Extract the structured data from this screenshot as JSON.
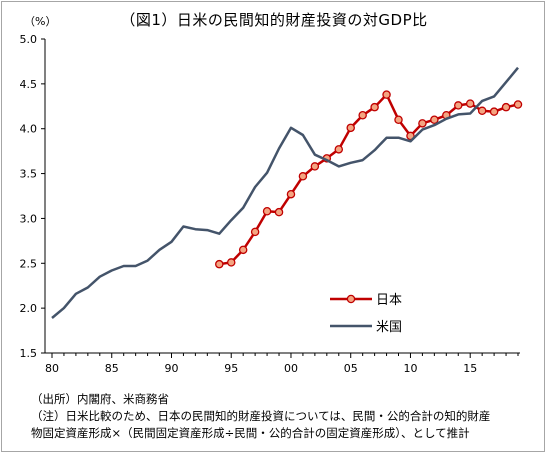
{
  "title": "（図1）日米の民間知的財産投資の対GDP比",
  "unit": "（%）",
  "footnotes": [
    "（出所）内閣府、米商務省",
    "（注）日米比較のため、日本の民間知的財産投資については、民間・公的合計の知的財産",
    "物固定資産形成×（民間固定資産形成÷民間・公的合計の固定資産形成）、として推計"
  ],
  "colors": {
    "japan": "#c00000",
    "japan_marker_fill": "#f4a582",
    "us": "#44546a",
    "axis": "#000000"
  },
  "chart_data": {
    "type": "line",
    "xlim": [
      1980,
      2019
    ],
    "ylim": [
      1.5,
      5.0
    ],
    "xticks": [
      1980,
      1985,
      1990,
      1995,
      2000,
      2005,
      2010,
      2015
    ],
    "xtick_labels": [
      "80",
      "85",
      "90",
      "95",
      "00",
      "05",
      "10",
      "15"
    ],
    "yticks": [
      1.5,
      2.0,
      2.5,
      3.0,
      3.5,
      4.0,
      4.5,
      5.0
    ],
    "ytick_labels": [
      "1.5",
      "2.0",
      "2.5",
      "3.0",
      "3.5",
      "4.0",
      "4.5",
      "5.0"
    ],
    "legend_position": "center-right",
    "series": [
      {
        "name": "日本",
        "marker": "circle",
        "x": [
          1994,
          1995,
          1996,
          1997,
          1998,
          1999,
          2000,
          2001,
          2002,
          2003,
          2004,
          2005,
          2006,
          2007,
          2008,
          2009,
          2010,
          2011,
          2012,
          2013,
          2014,
          2015,
          2016,
          2017,
          2018,
          2019
        ],
        "values": [
          2.49,
          2.51,
          2.65,
          2.85,
          3.08,
          3.07,
          3.27,
          3.47,
          3.58,
          3.67,
          3.77,
          4.01,
          4.15,
          4.24,
          4.38,
          4.1,
          3.92,
          4.06,
          4.1,
          4.15,
          4.26,
          4.28,
          4.2,
          4.19,
          4.24,
          4.27
        ]
      },
      {
        "name": "米国",
        "marker": "none",
        "x": [
          1980,
          1981,
          1982,
          1983,
          1984,
          1985,
          1986,
          1987,
          1988,
          1989,
          1990,
          1991,
          1992,
          1993,
          1994,
          1995,
          1996,
          1997,
          1998,
          1999,
          2000,
          2001,
          2002,
          2003,
          2004,
          2005,
          2006,
          2007,
          2008,
          2009,
          2010,
          2011,
          2012,
          2013,
          2014,
          2015,
          2016,
          2017,
          2018,
          2019
        ],
        "values": [
          1.89,
          2.0,
          2.16,
          2.23,
          2.35,
          2.42,
          2.47,
          2.47,
          2.53,
          2.65,
          2.74,
          2.91,
          2.88,
          2.87,
          2.83,
          2.98,
          3.12,
          3.35,
          3.51,
          3.78,
          4.01,
          3.93,
          3.71,
          3.65,
          3.58,
          3.62,
          3.65,
          3.76,
          3.9,
          3.9,
          3.86,
          3.99,
          4.04,
          4.11,
          4.16,
          4.17,
          4.31,
          4.36,
          4.52,
          4.68
        ]
      }
    ]
  }
}
